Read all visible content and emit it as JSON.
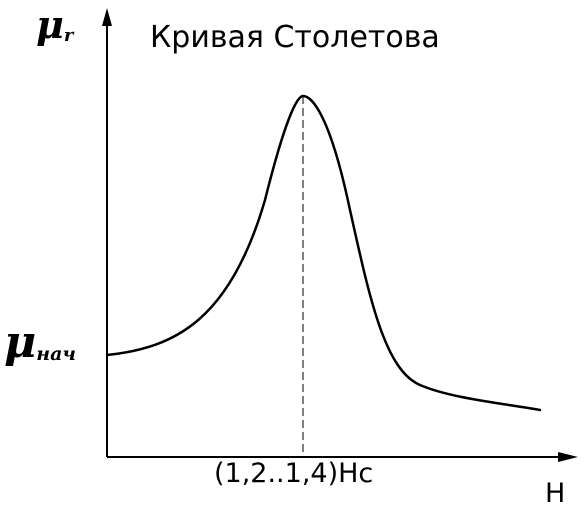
{
  "diagram": {
    "title": "Кривая Столетова",
    "y_axis": {
      "symbol": "μ",
      "subscript": "r"
    },
    "x_axis": {
      "label": "H"
    },
    "initial_level_label": {
      "symbol": "μ",
      "subscript": "нач"
    },
    "peak_label": "(1,2..1,4)Hc",
    "line_color": "#000000",
    "background_color": "#ffffff"
  }
}
